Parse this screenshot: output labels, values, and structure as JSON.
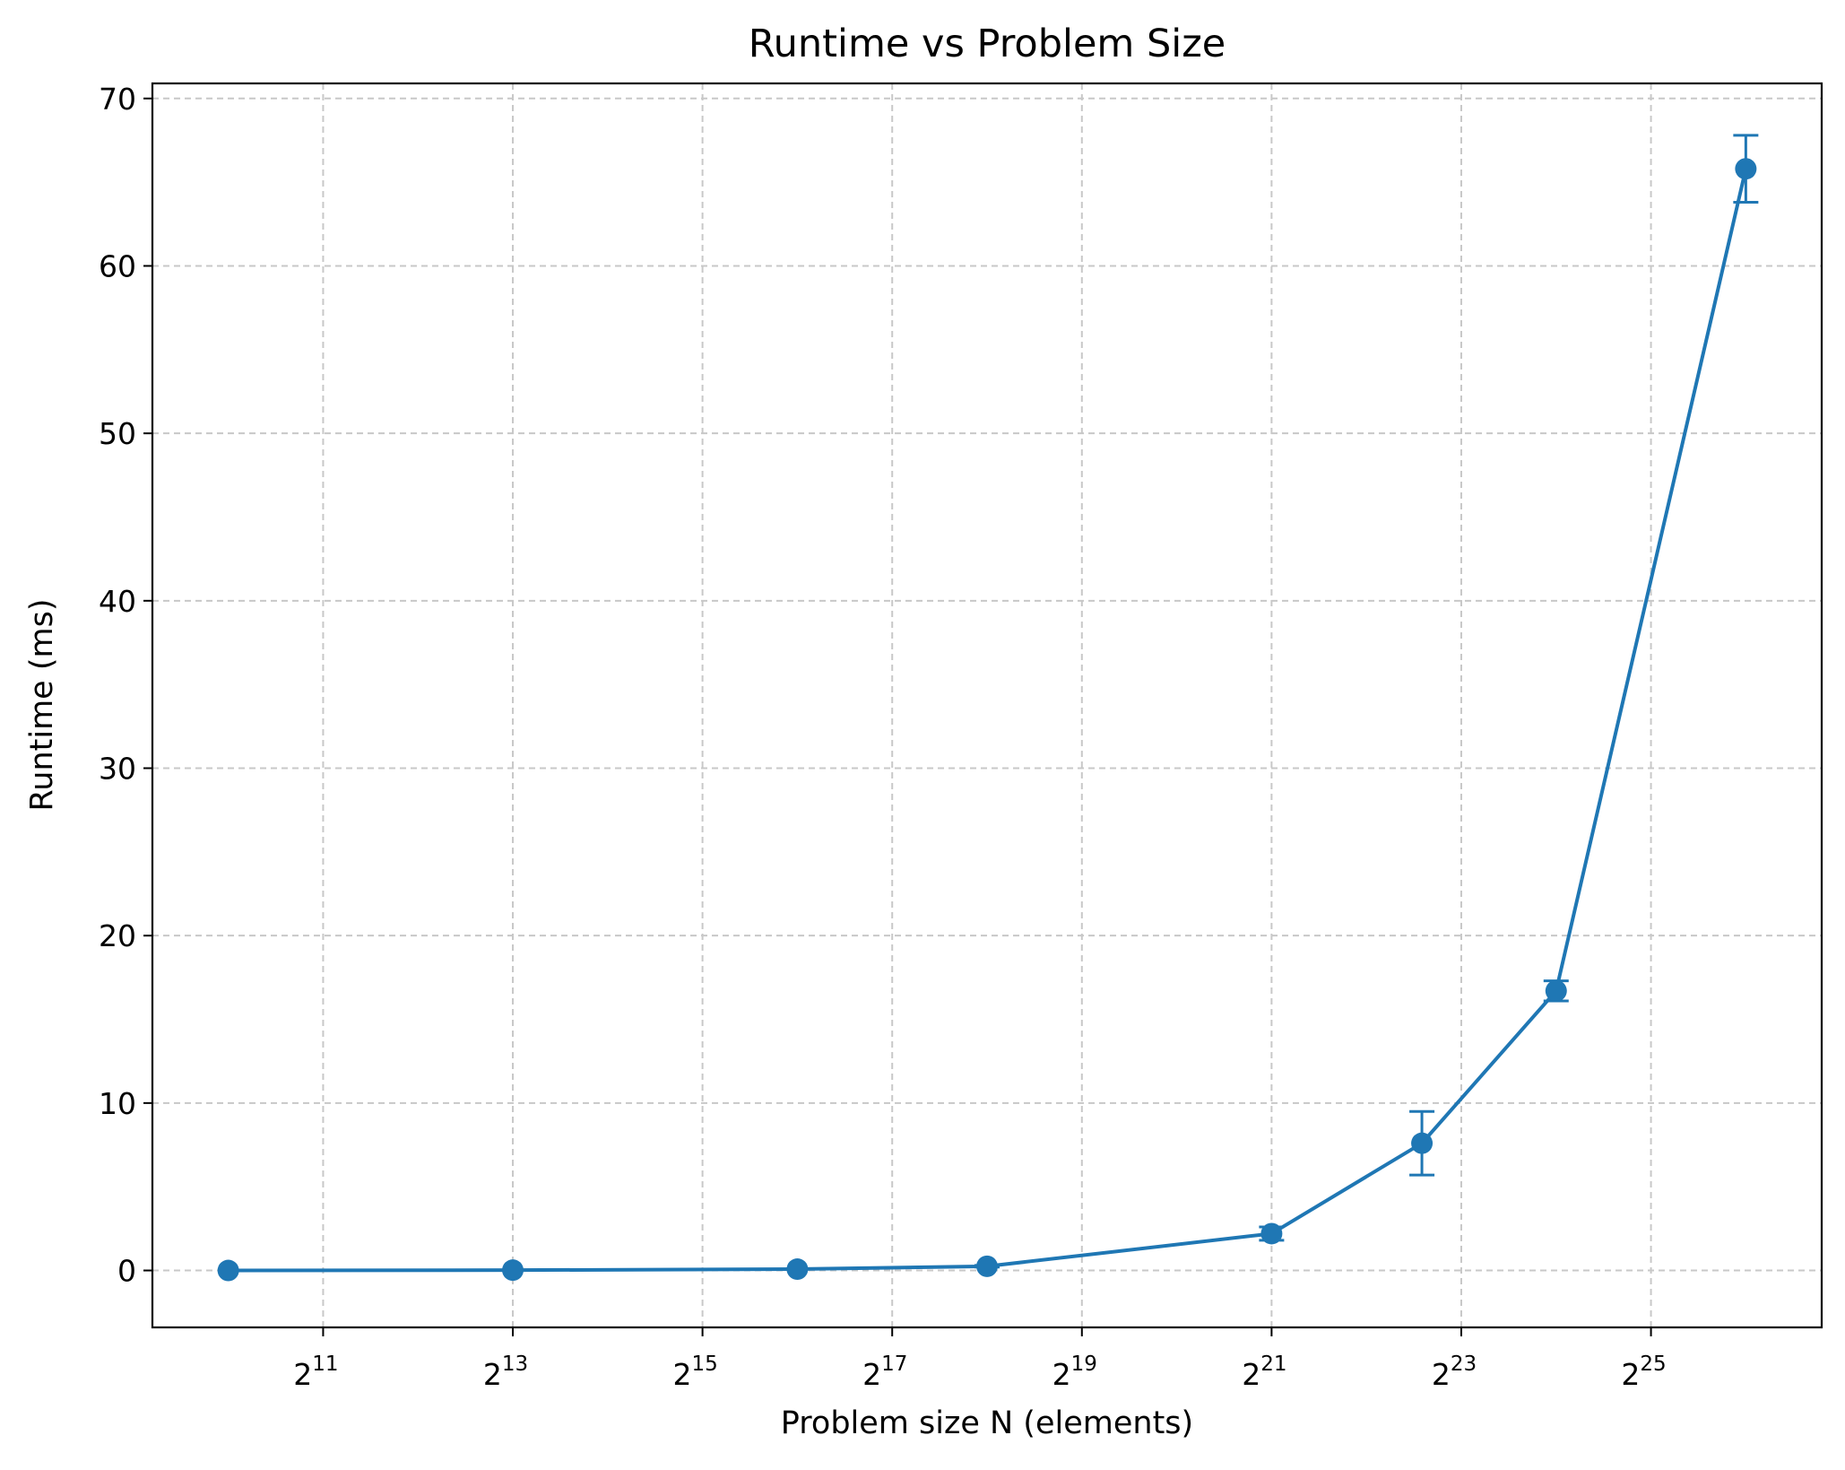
{
  "chart_data": {
    "type": "line",
    "title": "Runtime vs Problem Size",
    "xlabel": "Problem size N (elements)",
    "ylabel": "Runtime (ms)",
    "x_scale": "log2",
    "xlim_exponent": [
      9.2,
      26.8
    ],
    "x_tick_exponents": [
      11,
      13,
      15,
      17,
      19,
      21,
      23,
      25
    ],
    "x_tick_base": "2",
    "ylim": [
      -3.4,
      70.9
    ],
    "y_ticks": [
      0,
      10,
      20,
      30,
      40,
      50,
      60,
      70
    ],
    "grid": true,
    "series": [
      {
        "color": "#1f77b4",
        "marker": "circle",
        "points": [
          {
            "x": 1024,
            "y": 0.0,
            "err": 0.0
          },
          {
            "x": 8192,
            "y": 0.02,
            "err": 0.0
          },
          {
            "x": 65536,
            "y": 0.08,
            "err": 0.0
          },
          {
            "x": 262144,
            "y": 0.25,
            "err": 0.05
          },
          {
            "x": 2097152,
            "y": 2.2,
            "err": 0.4
          },
          {
            "x": 6291456,
            "y": 7.6,
            "err": 1.9
          },
          {
            "x": 16777216,
            "y": 16.7,
            "err": 0.6
          },
          {
            "x": 67108864,
            "y": 65.8,
            "err": 2.0
          }
        ]
      }
    ]
  }
}
